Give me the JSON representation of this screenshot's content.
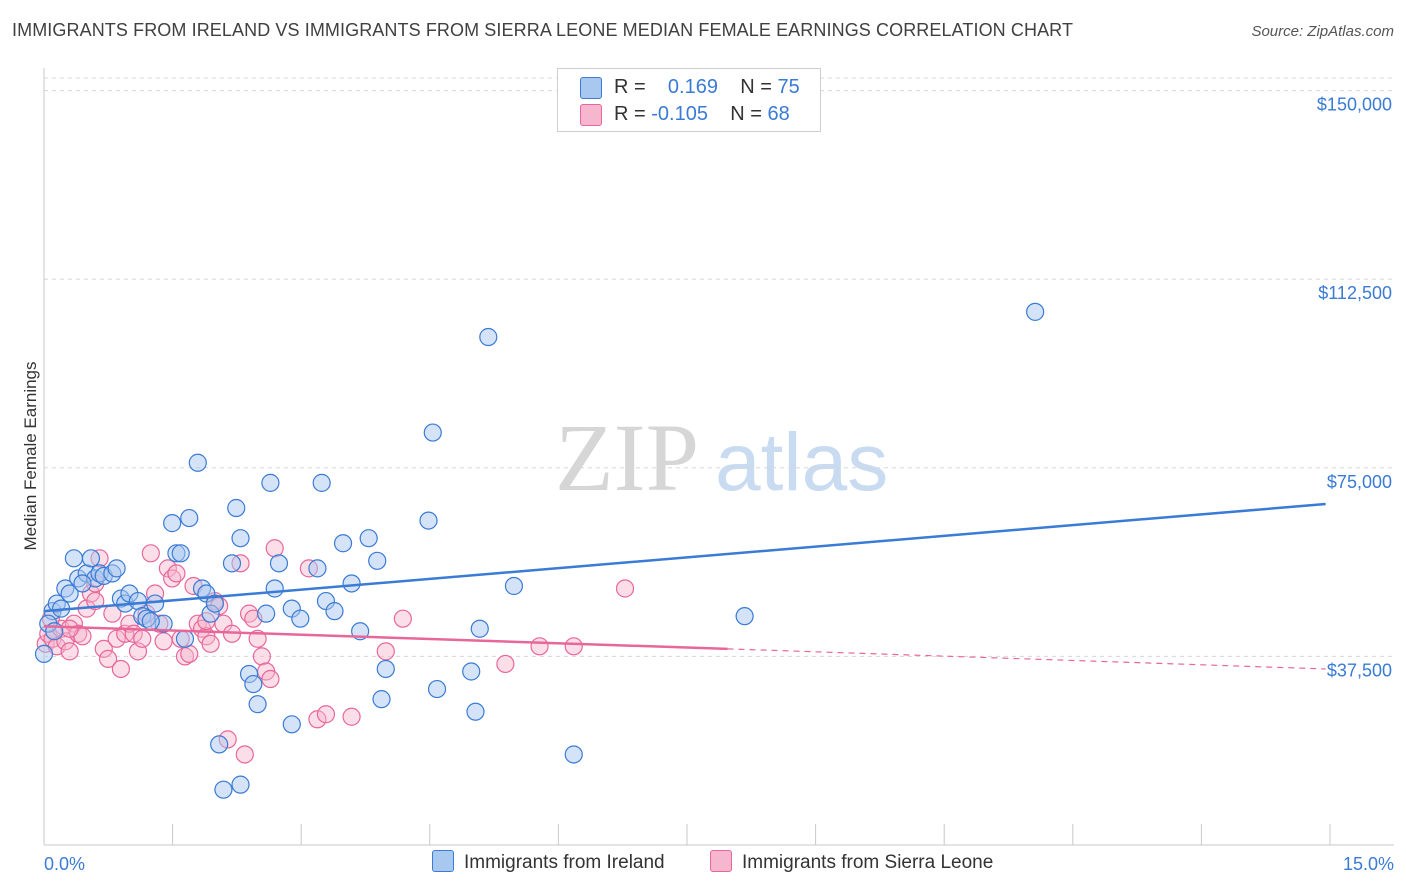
{
  "header": {
    "title": "IMMIGRANTS FROM IRELAND VS IMMIGRANTS FROM SIERRA LEONE MEDIAN FEMALE EARNINGS CORRELATION CHART",
    "source": "Source: ZipAtlas.com"
  },
  "colors": {
    "ireland": "#3a7bd5",
    "ireland_fill": "#a9c8f0",
    "sierra": "#e8679a",
    "sierra_fill": "#f6b6cd",
    "tick_text": "#3a7bd5",
    "grid": "#d8d8d8"
  },
  "legend": {
    "rows": [
      {
        "r_label": "R =",
        "r_value": "0.169",
        "n_label": "N =",
        "n_value": "75"
      },
      {
        "r_label": "R =",
        "r_value": "-0.105",
        "n_label": "N =",
        "n_value": "68"
      }
    ]
  },
  "bottom_legend": {
    "ireland": "Immigrants from Ireland",
    "sierra": "Immigrants from Sierra Leone"
  },
  "watermark": {
    "zip": "ZIP",
    "atlas": "atlas"
  },
  "chart_data": {
    "type": "scatter",
    "title": "IMMIGRANTS FROM IRELAND VS IMMIGRANTS FROM SIERRA LEONE MEDIAN FEMALE EARNINGS CORRELATION CHART",
    "xlabel": "",
    "ylabel": "Median Female Earnings",
    "xlim": [
      0,
      15.8
    ],
    "ylim": [
      0,
      152500
    ],
    "x_tick_labels": [
      "0.0%",
      "15.0%"
    ],
    "y_ticks": [
      37500,
      75000,
      112500,
      150000
    ],
    "y_tick_labels": [
      "$37,500",
      "$75,000",
      "$112,500",
      "$150,000"
    ],
    "series": [
      {
        "name": "Immigrants from Ireland",
        "r": 0.169,
        "n": 75,
        "trend": [
          [
            0.0,
            46500
          ],
          [
            15.0,
            67800
          ]
        ],
        "points": [
          [
            0.0,
            38000
          ],
          [
            0.1,
            46500
          ],
          [
            0.15,
            48000
          ],
          [
            0.2,
            47000
          ],
          [
            0.25,
            51000
          ],
          [
            0.3,
            50000
          ],
          [
            0.35,
            57000
          ],
          [
            0.4,
            53000
          ],
          [
            0.5,
            54000
          ],
          [
            0.55,
            57000
          ],
          [
            0.6,
            53000
          ],
          [
            0.65,
            54000
          ],
          [
            0.7,
            53500
          ],
          [
            0.8,
            54000
          ],
          [
            0.9,
            49000
          ],
          [
            0.95,
            48000
          ],
          [
            1.0,
            50000
          ],
          [
            1.1,
            48500
          ],
          [
            1.15,
            45500
          ],
          [
            1.2,
            45000
          ],
          [
            1.3,
            48000
          ],
          [
            1.4,
            44000
          ],
          [
            1.5,
            64000
          ],
          [
            1.55,
            58000
          ],
          [
            1.6,
            58000
          ],
          [
            1.65,
            41000
          ],
          [
            1.7,
            65000
          ],
          [
            1.8,
            76000
          ],
          [
            1.85,
            51000
          ],
          [
            1.9,
            50000
          ],
          [
            1.95,
            46000
          ],
          [
            2.0,
            48000
          ],
          [
            2.05,
            20000
          ],
          [
            2.1,
            11000
          ],
          [
            2.2,
            56000
          ],
          [
            2.25,
            67000
          ],
          [
            2.3,
            61000
          ],
          [
            2.3,
            12000
          ],
          [
            2.4,
            34000
          ],
          [
            2.45,
            32000
          ],
          [
            2.5,
            28000
          ],
          [
            2.6,
            46000
          ],
          [
            2.65,
            72000
          ],
          [
            2.7,
            51000
          ],
          [
            2.75,
            56000
          ],
          [
            2.9,
            47000
          ],
          [
            2.9,
            24000
          ],
          [
            3.0,
            45000
          ],
          [
            3.2,
            55000
          ],
          [
            3.25,
            72000
          ],
          [
            3.3,
            48500
          ],
          [
            3.4,
            46500
          ],
          [
            3.5,
            60000
          ],
          [
            3.6,
            52000
          ],
          [
            3.7,
            42500
          ],
          [
            3.8,
            61000
          ],
          [
            3.9,
            56500
          ],
          [
            3.95,
            29000
          ],
          [
            4.0,
            35000
          ],
          [
            4.5,
            64500
          ],
          [
            4.55,
            82000
          ],
          [
            4.6,
            31000
          ],
          [
            5.0,
            34500
          ],
          [
            5.05,
            26500
          ],
          [
            5.1,
            43000
          ],
          [
            5.2,
            101000
          ],
          [
            5.5,
            51500
          ],
          [
            6.2,
            18000
          ],
          [
            8.2,
            45500
          ],
          [
            11.6,
            106000
          ],
          [
            0.05,
            44000
          ],
          [
            0.12,
            42500
          ],
          [
            0.45,
            52000
          ],
          [
            1.25,
            44500
          ],
          [
            0.85,
            55000
          ]
        ]
      },
      {
        "name": "Immigrants from Sierra Leone",
        "r": -0.105,
        "n": 68,
        "trend": [
          [
            0.0,
            43500
          ],
          [
            8.0,
            39000
          ]
        ],
        "trend_dashed": [
          [
            8.0,
            39000
          ],
          [
            15.0,
            35000
          ]
        ],
        "points": [
          [
            0.02,
            40000
          ],
          [
            0.05,
            42000
          ],
          [
            0.1,
            41000
          ],
          [
            0.15,
            39500
          ],
          [
            0.2,
            43000
          ],
          [
            0.25,
            40500
          ],
          [
            0.3,
            38500
          ],
          [
            0.35,
            44000
          ],
          [
            0.4,
            42000
          ],
          [
            0.45,
            41500
          ],
          [
            0.5,
            47000
          ],
          [
            0.55,
            50000
          ],
          [
            0.6,
            52000
          ],
          [
            0.65,
            57000
          ],
          [
            0.7,
            39000
          ],
          [
            0.75,
            37000
          ],
          [
            0.8,
            46000
          ],
          [
            0.85,
            41000
          ],
          [
            0.9,
            35000
          ],
          [
            0.95,
            42000
          ],
          [
            1.0,
            44000
          ],
          [
            1.05,
            42000
          ],
          [
            1.1,
            38500
          ],
          [
            1.15,
            41000
          ],
          [
            1.2,
            46000
          ],
          [
            1.25,
            58000
          ],
          [
            1.3,
            50000
          ],
          [
            1.35,
            44000
          ],
          [
            1.4,
            40500
          ],
          [
            1.45,
            55000
          ],
          [
            1.5,
            53000
          ],
          [
            1.55,
            54000
          ],
          [
            1.6,
            41000
          ],
          [
            1.65,
            37500
          ],
          [
            1.7,
            38000
          ],
          [
            1.75,
            51500
          ],
          [
            1.8,
            44000
          ],
          [
            1.85,
            43000
          ],
          [
            1.9,
            41500
          ],
          [
            1.95,
            40000
          ],
          [
            2.0,
            48500
          ],
          [
            2.05,
            47500
          ],
          [
            2.1,
            44000
          ],
          [
            2.15,
            21000
          ],
          [
            2.2,
            42000
          ],
          [
            2.3,
            56000
          ],
          [
            2.35,
            18000
          ],
          [
            2.4,
            46000
          ],
          [
            2.45,
            45000
          ],
          [
            2.5,
            41000
          ],
          [
            2.55,
            37500
          ],
          [
            2.6,
            34500
          ],
          [
            2.65,
            33000
          ],
          [
            2.7,
            59000
          ],
          [
            3.1,
            55000
          ],
          [
            3.2,
            25000
          ],
          [
            3.3,
            26000
          ],
          [
            3.6,
            25500
          ],
          [
            4.0,
            38500
          ],
          [
            4.2,
            45000
          ],
          [
            5.4,
            36000
          ],
          [
            5.8,
            39500
          ],
          [
            6.2,
            39500
          ],
          [
            6.8,
            51000
          ],
          [
            0.08,
            45000
          ],
          [
            0.3,
            43000
          ],
          [
            0.6,
            48500
          ],
          [
            1.9,
            44500
          ]
        ]
      }
    ]
  }
}
